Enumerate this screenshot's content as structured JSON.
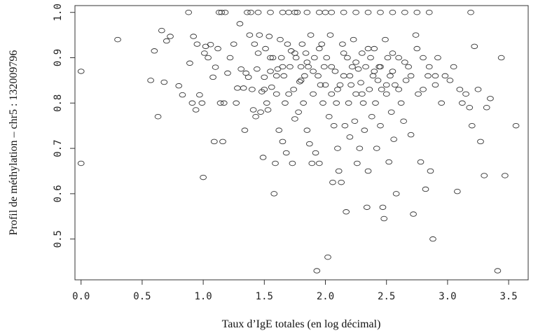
{
  "chart_data": {
    "type": "scatter",
    "title": "",
    "xlabel": "Taux d’IgE totales (en log décimal)",
    "ylabel": "Profil de méthylation – chr5 : 132009796",
    "xlim": [
      -0.05,
      3.66
    ],
    "ylim": [
      0.41,
      1.015
    ],
    "x_ticks": [
      "0.0",
      "0.5",
      "1.0",
      "1.5",
      "2.0",
      "2.5",
      "3.0",
      "3.5"
    ],
    "y_ticks": [
      "0.5",
      "0.6",
      "0.7",
      "0.8",
      "0.9",
      "1.0"
    ],
    "grid": false,
    "marker": "open-circle",
    "marker_color": "#333333",
    "points": [
      [
        0.0,
        0.87
      ],
      [
        0.0,
        0.667
      ],
      [
        0.3,
        0.94
      ],
      [
        0.57,
        0.85
      ],
      [
        0.6,
        0.915
      ],
      [
        0.63,
        0.77
      ],
      [
        0.66,
        0.96
      ],
      [
        0.68,
        0.846
      ],
      [
        0.7,
        0.937
      ],
      [
        0.73,
        0.947
      ],
      [
        0.8,
        0.838
      ],
      [
        0.83,
        0.818
      ],
      [
        0.88,
        1.0
      ],
      [
        0.89,
        0.888
      ],
      [
        0.91,
        0.8
      ],
      [
        0.92,
        0.947
      ],
      [
        0.94,
        0.785
      ],
      [
        0.95,
        0.93
      ],
      [
        0.97,
        0.818
      ],
      [
        0.99,
        0.8
      ],
      [
        1.0,
        0.636
      ],
      [
        1.01,
        0.91
      ],
      [
        1.02,
        0.925
      ],
      [
        1.04,
        0.9
      ],
      [
        1.06,
        0.929
      ],
      [
        1.08,
        0.857
      ],
      [
        1.09,
        0.715
      ],
      [
        1.1,
        0.879
      ],
      [
        1.12,
        0.92
      ],
      [
        1.13,
        1.0
      ],
      [
        1.14,
        0.8
      ],
      [
        1.15,
        1.0
      ],
      [
        1.16,
        0.715
      ],
      [
        1.17,
        0.8
      ],
      [
        1.18,
        1.0
      ],
      [
        1.2,
        0.866
      ],
      [
        1.22,
        0.9
      ],
      [
        1.25,
        0.93
      ],
      [
        1.27,
        0.8
      ],
      [
        1.28,
        0.833
      ],
      [
        1.3,
        0.975
      ],
      [
        1.31,
        0.875
      ],
      [
        1.33,
        0.833
      ],
      [
        1.34,
        0.74
      ],
      [
        1.35,
        0.866
      ],
      [
        1.36,
        1.0
      ],
      [
        1.37,
        0.857
      ],
      [
        1.38,
        0.95
      ],
      [
        1.39,
        1.0
      ],
      [
        1.4,
        0.83
      ],
      [
        1.41,
        0.785
      ],
      [
        1.42,
        0.93
      ],
      [
        1.43,
        0.77
      ],
      [
        1.44,
        0.875
      ],
      [
        1.45,
        0.91
      ],
      [
        1.46,
        0.95
      ],
      [
        1.47,
        0.78
      ],
      [
        1.48,
        0.825
      ],
      [
        1.49,
        0.68
      ],
      [
        1.5,
        0.857
      ],
      [
        1.51,
        0.92
      ],
      [
        1.52,
        0.8
      ],
      [
        1.53,
        0.785
      ],
      [
        1.54,
        0.947
      ],
      [
        1.55,
        0.87
      ],
      [
        1.56,
        0.835
      ],
      [
        1.57,
        0.9
      ],
      [
        1.58,
        0.6
      ],
      [
        1.59,
        0.667
      ],
      [
        1.6,
        0.82
      ],
      [
        1.61,
        0.875
      ],
      [
        1.62,
        0.74
      ],
      [
        1.63,
        0.94
      ],
      [
        1.64,
        0.9
      ],
      [
        1.65,
        0.715
      ],
      [
        1.66,
        0.86
      ],
      [
        1.67,
        0.8
      ],
      [
        1.68,
        0.69
      ],
      [
        1.69,
        0.93
      ],
      [
        1.7,
        1.0
      ],
      [
        1.71,
        0.88
      ],
      [
        1.72,
        0.915
      ],
      [
        1.73,
        0.667
      ],
      [
        1.74,
        0.83
      ],
      [
        1.75,
        0.765
      ],
      [
        1.76,
        0.9
      ],
      [
        1.77,
        1.0
      ],
      [
        1.78,
        0.78
      ],
      [
        1.79,
        0.847
      ],
      [
        1.8,
        0.88
      ],
      [
        1.81,
        0.93
      ],
      [
        1.82,
        0.8
      ],
      [
        1.83,
        0.86
      ],
      [
        1.84,
        0.91
      ],
      [
        1.85,
        0.74
      ],
      [
        1.86,
        0.88
      ],
      [
        1.87,
        0.71
      ],
      [
        1.88,
        0.95
      ],
      [
        1.89,
        0.667
      ],
      [
        1.9,
        0.82
      ],
      [
        1.91,
        0.9
      ],
      [
        1.92,
        0.69
      ],
      [
        1.93,
        0.43
      ],
      [
        1.94,
        0.86
      ],
      [
        1.95,
        0.667
      ],
      [
        1.96,
        0.84
      ],
      [
        1.97,
        0.93
      ],
      [
        1.98,
        0.8
      ],
      [
        1.99,
        0.88
      ],
      [
        2.0,
        1.0
      ],
      [
        2.01,
        0.9
      ],
      [
        2.02,
        0.46
      ],
      [
        2.03,
        0.77
      ],
      [
        2.04,
        0.95
      ],
      [
        2.05,
        0.82
      ],
      [
        2.06,
        0.625
      ],
      [
        2.07,
        0.75
      ],
      [
        2.08,
        0.87
      ],
      [
        2.09,
        0.8
      ],
      [
        2.1,
        0.7
      ],
      [
        2.11,
        0.65
      ],
      [
        2.12,
        0.84
      ],
      [
        2.13,
        0.625
      ],
      [
        2.14,
        0.93
      ],
      [
        2.15,
        0.86
      ],
      [
        2.16,
        0.75
      ],
      [
        2.17,
        0.56
      ],
      [
        2.18,
        0.9
      ],
      [
        2.19,
        0.8
      ],
      [
        2.2,
        0.725
      ],
      [
        2.21,
        0.84
      ],
      [
        2.22,
        0.88
      ],
      [
        2.23,
        0.94
      ],
      [
        2.24,
        0.76
      ],
      [
        2.25,
        0.82
      ],
      [
        2.26,
        0.667
      ],
      [
        2.27,
        0.875
      ],
      [
        2.28,
        0.7
      ],
      [
        2.29,
        0.845
      ],
      [
        2.3,
        0.91
      ],
      [
        2.31,
        0.8
      ],
      [
        2.32,
        0.74
      ],
      [
        2.33,
        0.88
      ],
      [
        2.34,
        0.57
      ],
      [
        2.35,
        0.65
      ],
      [
        2.36,
        0.83
      ],
      [
        2.37,
        0.9
      ],
      [
        2.38,
        0.77
      ],
      [
        2.39,
        0.86
      ],
      [
        2.4,
        0.92
      ],
      [
        2.41,
        0.8
      ],
      [
        2.42,
        0.7
      ],
      [
        2.43,
        0.85
      ],
      [
        2.44,
        0.88
      ],
      [
        2.45,
        0.75
      ],
      [
        2.46,
        0.83
      ],
      [
        2.47,
        0.57
      ],
      [
        2.48,
        0.545
      ],
      [
        2.49,
        0.94
      ],
      [
        2.5,
        0.82
      ],
      [
        2.51,
        0.9
      ],
      [
        2.52,
        0.67
      ],
      [
        2.53,
        0.86
      ],
      [
        2.54,
        0.78
      ],
      [
        2.55,
        0.87
      ],
      [
        2.56,
        0.72
      ],
      [
        2.57,
        0.84
      ],
      [
        2.58,
        0.6
      ],
      [
        2.6,
        0.9
      ],
      [
        2.62,
        0.8
      ],
      [
        2.64,
        0.76
      ],
      [
        2.66,
        0.85
      ],
      [
        2.68,
        0.88
      ],
      [
        2.7,
        0.73
      ],
      [
        2.72,
        0.555
      ],
      [
        2.74,
        0.95
      ],
      [
        2.76,
        0.82
      ],
      [
        2.78,
        0.67
      ],
      [
        2.8,
        0.9
      ],
      [
        2.82,
        0.61
      ],
      [
        2.84,
        0.86
      ],
      [
        2.86,
        0.65
      ],
      [
        2.88,
        0.5
      ],
      [
        2.9,
        0.84
      ],
      [
        2.92,
        0.9
      ],
      [
        2.95,
        0.8
      ],
      [
        2.98,
        0.86
      ],
      [
        3.02,
        0.85
      ],
      [
        3.05,
        0.88
      ],
      [
        3.08,
        0.605
      ],
      [
        3.1,
        0.83
      ],
      [
        3.12,
        0.8
      ],
      [
        3.15,
        0.82
      ],
      [
        3.18,
        0.79
      ],
      [
        3.2,
        0.75
      ],
      [
        3.22,
        0.925
      ],
      [
        3.25,
        0.83
      ],
      [
        3.27,
        0.715
      ],
      [
        3.3,
        0.64
      ],
      [
        3.32,
        0.79
      ],
      [
        3.35,
        0.81
      ],
      [
        3.41,
        0.43
      ],
      [
        3.44,
        0.9
      ],
      [
        3.47,
        0.64
      ],
      [
        3.56,
        0.75
      ],
      [
        1.45,
        1.0
      ],
      [
        1.55,
        1.0
      ],
      [
        1.65,
        1.0
      ],
      [
        1.75,
        1.0
      ],
      [
        1.85,
        1.0
      ],
      [
        1.95,
        1.0
      ],
      [
        2.05,
        1.0
      ],
      [
        2.15,
        1.0
      ],
      [
        2.25,
        1.0
      ],
      [
        2.35,
        1.0
      ],
      [
        2.45,
        1.0
      ],
      [
        2.55,
        1.0
      ],
      [
        2.65,
        1.0
      ],
      [
        2.75,
        1.0
      ],
      [
        2.85,
        1.0
      ],
      [
        3.19,
        1.0
      ],
      [
        1.5,
        0.83
      ],
      [
        1.6,
        0.86
      ],
      [
        1.7,
        0.82
      ],
      [
        1.8,
        0.85
      ],
      [
        1.9,
        0.87
      ],
      [
        2.0,
        0.84
      ],
      [
        2.1,
        0.83
      ],
      [
        2.2,
        0.86
      ],
      [
        2.3,
        0.82
      ],
      [
        2.4,
        0.87
      ],
      [
        2.5,
        0.84
      ],
      [
        2.6,
        0.83
      ],
      [
        2.7,
        0.86
      ],
      [
        2.8,
        0.83
      ],
      [
        2.9,
        0.86
      ],
      [
        1.55,
        0.9
      ],
      [
        1.65,
        0.88
      ],
      [
        1.75,
        0.91
      ],
      [
        1.85,
        0.89
      ],
      [
        1.95,
        0.92
      ],
      [
        2.05,
        0.88
      ],
      [
        2.15,
        0.91
      ],
      [
        2.25,
        0.89
      ],
      [
        2.35,
        0.92
      ],
      [
        2.45,
        0.88
      ],
      [
        2.55,
        0.91
      ],
      [
        2.65,
        0.89
      ],
      [
        2.75,
        0.92
      ],
      [
        2.85,
        0.88
      ]
    ]
  }
}
